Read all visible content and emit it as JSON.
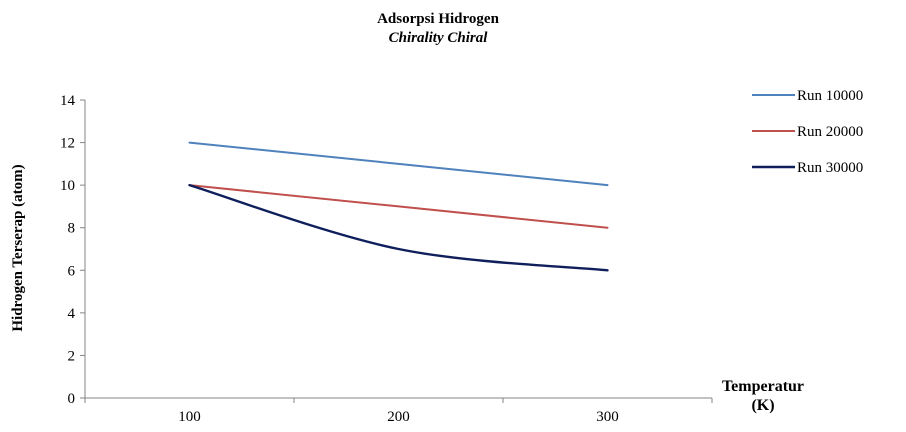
{
  "chart_data": {
    "type": "line",
    "title": "Adsorpsi Hidrogen",
    "subtitle": "Chirality Chiral",
    "xlabel_line1": "Temperatur",
    "xlabel_line2": "(K)",
    "ylabel": "Hidrogen Terserap (atom)",
    "categories": [
      "100",
      "200",
      "300"
    ],
    "ylim": [
      0,
      14
    ],
    "yticks": [
      0,
      2,
      4,
      6,
      8,
      10,
      12,
      14
    ],
    "grid": false,
    "legend_position": "top-right",
    "series": [
      {
        "name": "Run 10000",
        "color": "#4F81BD",
        "values": [
          12,
          11,
          10
        ],
        "smooth": false
      },
      {
        "name": "Run 20000",
        "color": "#C0504D",
        "values": [
          10,
          9,
          8
        ],
        "smooth": false
      },
      {
        "name": "Run 30000",
        "color": "#0F1F5C",
        "values": [
          10,
          7,
          6
        ],
        "smooth": true
      }
    ]
  }
}
